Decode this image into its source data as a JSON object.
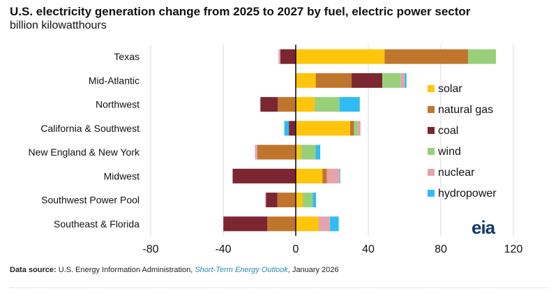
{
  "chart_data": {
    "type": "bar",
    "orientation": "horizontal",
    "stacked": true,
    "title": "U.S. electricity generation change from 2025 to 2027 by fuel, electric power sector",
    "subtitle": "billion kilowatthours",
    "categories": [
      "Texas",
      "Mid-Atlantic",
      "Northwest",
      "California & Southwest",
      "New England & New York",
      "Midwest",
      "Southwest Power Pool",
      "Southeast & Florida"
    ],
    "series": [
      {
        "name": "solar",
        "color": "#ffc50b",
        "values": [
          49,
          11,
          10.4,
          30,
          2.8,
          14.7,
          3.8,
          12.5
        ]
      },
      {
        "name": "natural gas",
        "color": "#bf762c",
        "values": [
          46,
          19.8,
          -9.9,
          2.2,
          -21.2,
          2.5,
          -10.1,
          -15.7
        ]
      },
      {
        "name": "coal",
        "color": "#7b2630",
        "values": [
          -8.5,
          16.9,
          -9.6,
          -3.8,
          0,
          -34.8,
          -6.3,
          -24.2
        ]
      },
      {
        "name": "wind",
        "color": "#98d07a",
        "values": [
          15.4,
          10.3,
          13.7,
          2,
          8.2,
          0,
          5.5,
          0
        ]
      },
      {
        "name": "nuclear",
        "color": "#e3a4ad",
        "values": [
          -1,
          2.2,
          0,
          1.5,
          -1.3,
          7.1,
          -0.4,
          6.4
        ]
      },
      {
        "name": "hydropower",
        "color": "#2fbcf5",
        "values": [
          0,
          0.9,
          11.2,
          -2.5,
          2.5,
          0.3,
          1.9,
          4.8
        ]
      }
    ],
    "xlim": [
      -80,
      120
    ],
    "xticks": [
      "-80",
      "-40",
      "0",
      "40",
      "80",
      "120"
    ],
    "grid": true,
    "legend": "right"
  },
  "footer": {
    "label": "Data source:",
    "source": " U.S. Energy Information Administration, ",
    "publication": "Short-Term Energy Outlook",
    "date": ", January 2026"
  },
  "logo": "eia"
}
